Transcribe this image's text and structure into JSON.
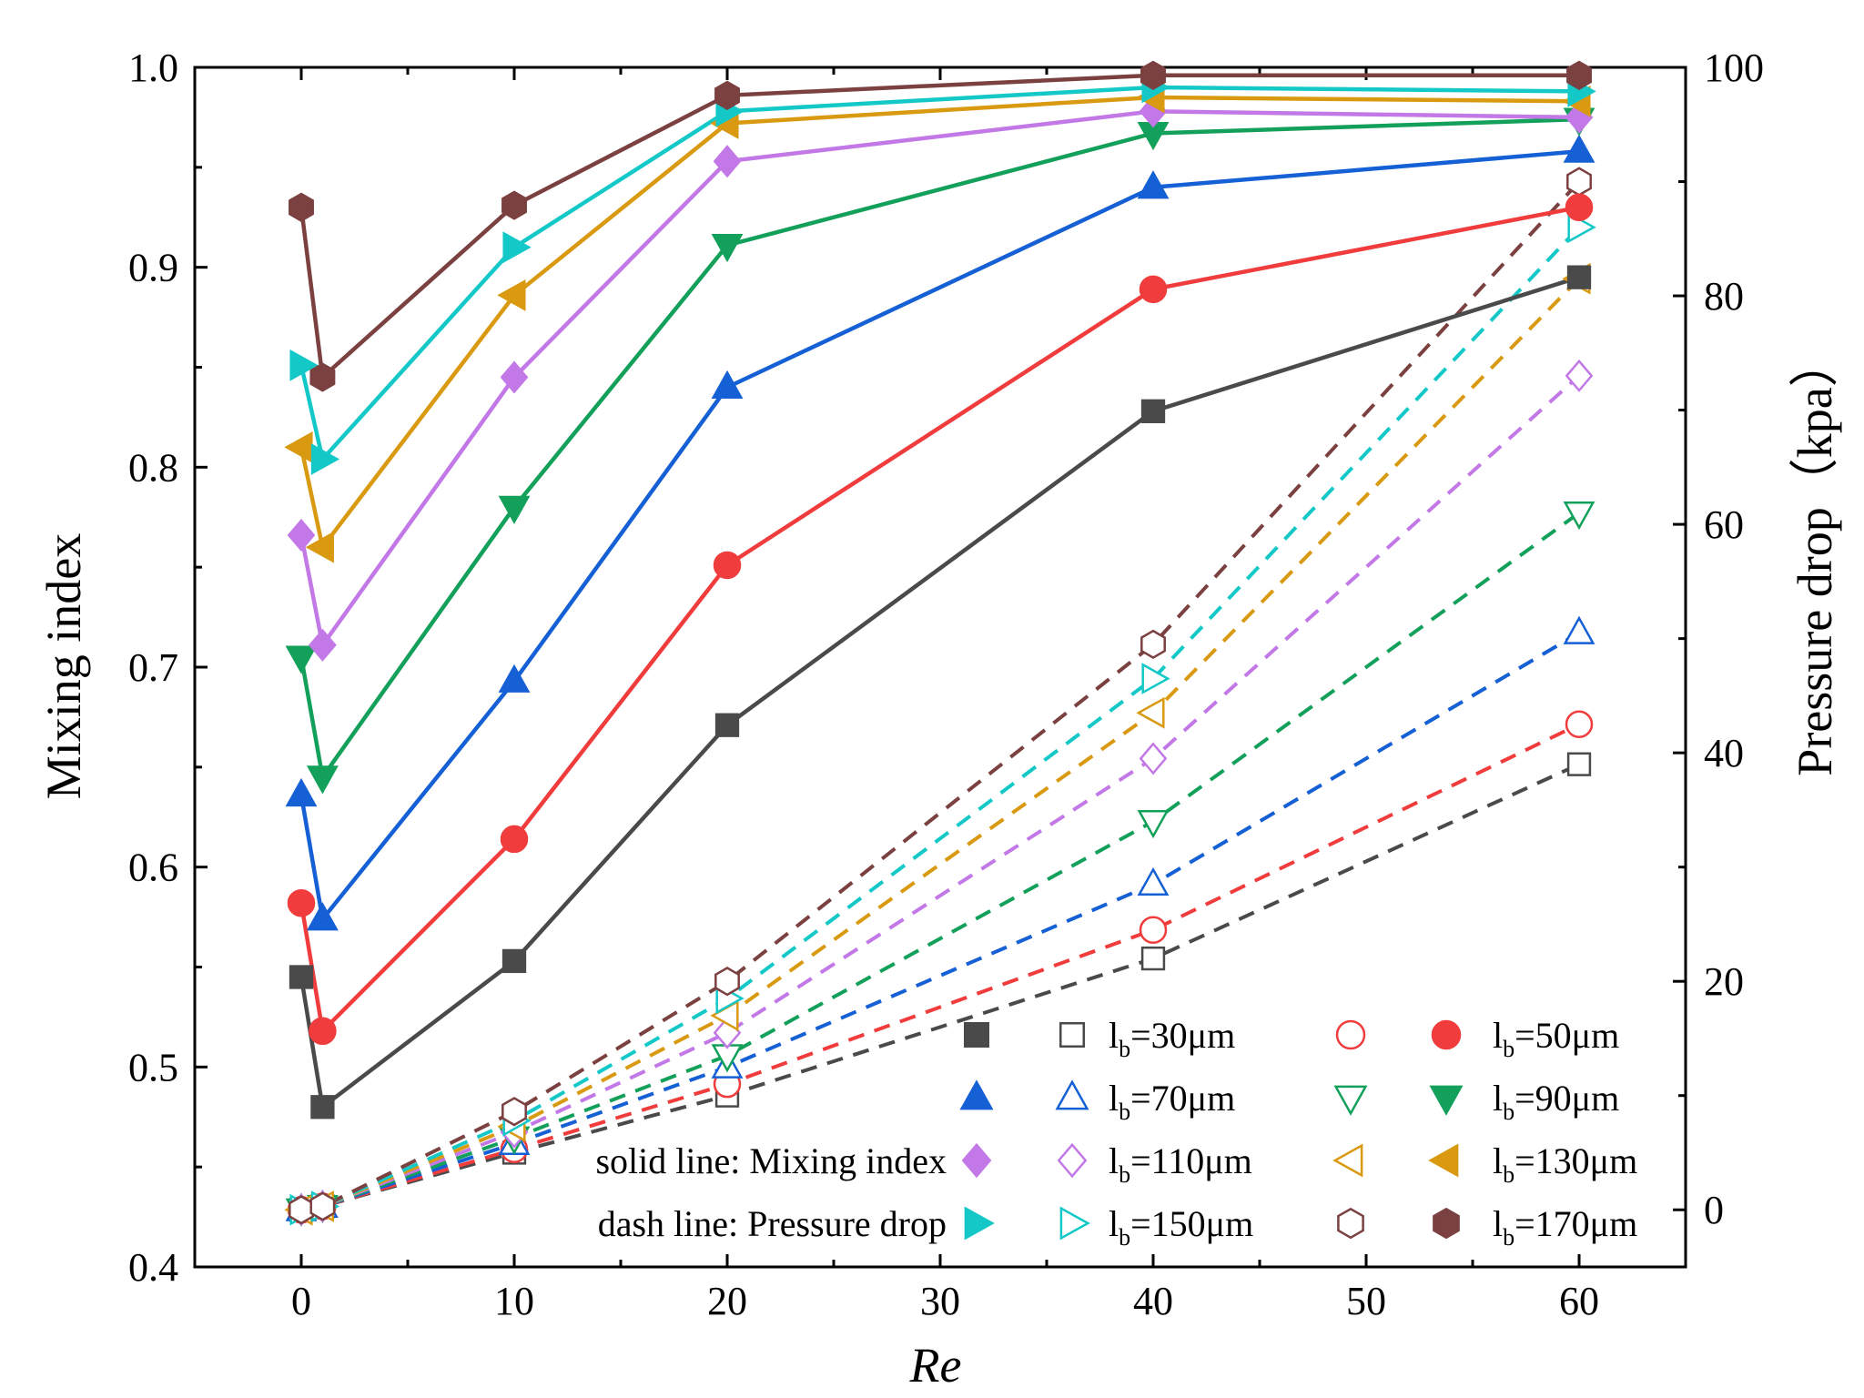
{
  "chart_data": {
    "type": "line",
    "x": [
      0,
      1,
      10,
      20,
      40,
      60
    ],
    "xlabel": "Re",
    "xlim": [
      -5,
      65
    ],
    "xticks": [
      0,
      10,
      20,
      30,
      40,
      50,
      60
    ],
    "ylabel_left": "Mixing index",
    "ylim_left": [
      0.4,
      1.0
    ],
    "yticks_left": [
      "0.4",
      "0.5",
      "0.6",
      "0.7",
      "0.8",
      "0.9",
      "1.0"
    ],
    "ylabel_right": "Pressure drop（kpa）",
    "ylim_right": [
      -5,
      100
    ],
    "yticks_right": [
      "0",
      "20",
      "40",
      "60",
      "80",
      "100"
    ],
    "legend_notes": [
      "solid line: Mixing index",
      "dash line: Pressure drop"
    ],
    "series": [
      {
        "name": "lb=30μm",
        "label_main": "l",
        "label_sub": "b",
        "label_rest": "=30μm",
        "color": "#4a4a4a",
        "marker": "square",
        "mixing_index": [
          0.545,
          0.48,
          0.553,
          0.671,
          0.828,
          0.895
        ],
        "pressure_drop": [
          0.0,
          0.3,
          5.0,
          10.0,
          22.0,
          39.0
        ]
      },
      {
        "name": "lb=50μm",
        "label_main": "l",
        "label_sub": "b",
        "label_rest": "=50μm",
        "color": "#f03c3c",
        "marker": "circle",
        "mixing_index": [
          0.582,
          0.518,
          0.614,
          0.751,
          0.889,
          0.93
        ],
        "pressure_drop": [
          0.0,
          0.3,
          5.3,
          11.0,
          24.5,
          42.5
        ]
      },
      {
        "name": "lb=70μm",
        "label_main": "l",
        "label_sub": "b",
        "label_rest": "=70μm",
        "color": "#1560d4",
        "marker": "triangle-up",
        "mixing_index": [
          0.636,
          0.574,
          0.693,
          0.84,
          0.94,
          0.958
        ],
        "pressure_drop": [
          0.0,
          0.3,
          5.8,
          12.5,
          28.5,
          50.5
        ]
      },
      {
        "name": "lb=90μm",
        "label_main": "l",
        "label_sub": "b",
        "label_rest": "=90μm",
        "color": "#13a05a",
        "marker": "triangle-down",
        "mixing_index": [
          0.705,
          0.645,
          0.78,
          0.911,
          0.967,
          0.974
        ],
        "pressure_drop": [
          0.0,
          0.3,
          6.3,
          13.5,
          34.0,
          61.0
        ]
      },
      {
        "name": "lb=110μm",
        "label_main": "l",
        "label_sub": "b",
        "label_rest": "=110μm",
        "color": "#c278e6",
        "marker": "diamond",
        "mixing_index": [
          0.766,
          0.711,
          0.845,
          0.953,
          0.978,
          0.975
        ],
        "pressure_drop": [
          0.0,
          0.3,
          6.8,
          15.5,
          39.5,
          73.0
        ]
      },
      {
        "name": "lb=130μm",
        "label_main": "l",
        "label_sub": "b",
        "label_rest": "=130μm",
        "color": "#d99a12",
        "marker": "triangle-left",
        "mixing_index": [
          0.81,
          0.76,
          0.886,
          0.972,
          0.985,
          0.983
        ],
        "pressure_drop": [
          0.0,
          0.3,
          7.3,
          17.0,
          43.5,
          81.5
        ]
      },
      {
        "name": "lb=150μm",
        "label_main": "l",
        "label_sub": "b",
        "label_rest": "=150μm",
        "color": "#14c8c8",
        "marker": "triangle-right",
        "mixing_index": [
          0.851,
          0.804,
          0.91,
          0.978,
          0.99,
          0.988
        ],
        "pressure_drop": [
          0.0,
          0.3,
          7.8,
          18.5,
          46.5,
          86.0
        ]
      },
      {
        "name": "lb=170μm",
        "label_main": "l",
        "label_sub": "b",
        "label_rest": "=170μm",
        "color": "#7b4040",
        "marker": "hexagon",
        "mixing_index": [
          0.93,
          0.845,
          0.931,
          0.986,
          0.996,
          0.996
        ],
        "pressure_drop": [
          0.0,
          0.3,
          8.6,
          20.0,
          49.5,
          90.0
        ]
      }
    ]
  }
}
